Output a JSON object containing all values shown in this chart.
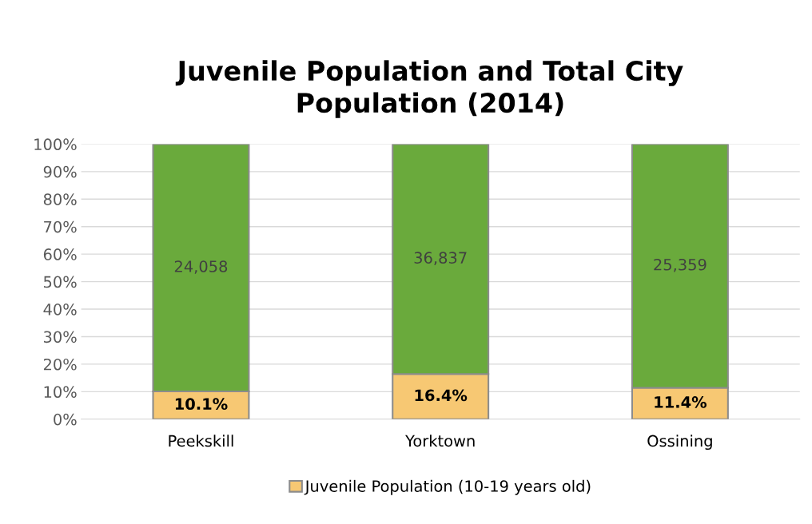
{
  "chart_data": {
    "type": "bar",
    "title": "Juvenile Population and Total City\nPopulation (2014)",
    "categories": [
      "Peekskill",
      "Yorktown",
      "Ossining"
    ],
    "stacked": true,
    "series": [
      {
        "name": "Juvenile Population (10-19 years old)",
        "color": "#f7c873",
        "values": [
          10.1,
          16.4,
          11.4
        ],
        "value_labels": [
          "10.1%",
          "16.4%",
          "11.4%"
        ]
      },
      {
        "color": "#6aaa3c",
        "values": [
          89.9,
          83.6,
          88.6
        ]
      }
    ],
    "annotations": [
      "24,058",
      "36,837",
      "25,359"
    ],
    "ylim": [
      0,
      100
    ],
    "yticks": [
      {
        "value": 0,
        "label": "0%"
      },
      {
        "value": 10,
        "label": "10%"
      },
      {
        "value": 20,
        "label": "20%"
      },
      {
        "value": 30,
        "label": "30%"
      },
      {
        "value": 40,
        "label": "40%"
      },
      {
        "value": 50,
        "label": "50%"
      },
      {
        "value": 60,
        "label": "60%"
      },
      {
        "value": 70,
        "label": "70%"
      },
      {
        "value": 80,
        "label": "80%"
      },
      {
        "value": 90,
        "label": "90%"
      },
      {
        "value": 100,
        "label": "100%"
      }
    ],
    "grid": "y",
    "legend": "bottom"
  }
}
